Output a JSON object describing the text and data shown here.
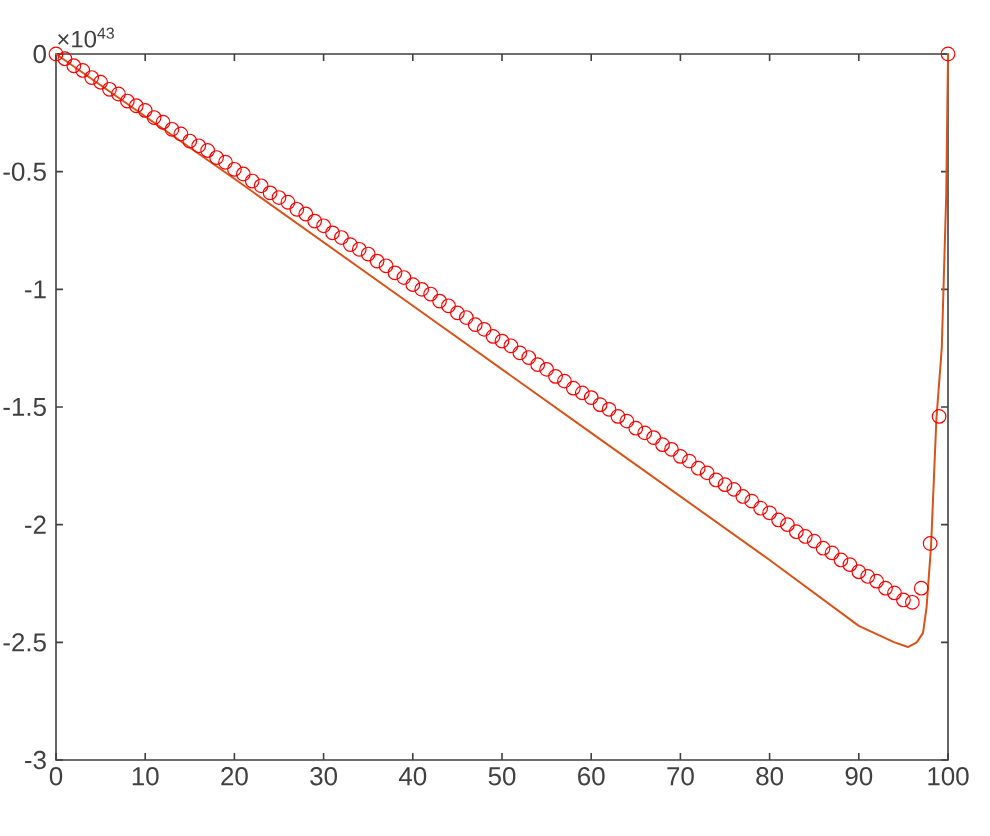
{
  "chart_data": {
    "type": "scatter",
    "xlim": [
      0,
      100
    ],
    "ylim": [
      -3,
      0
    ],
    "xticks": [
      0,
      10,
      20,
      30,
      40,
      50,
      60,
      70,
      80,
      90,
      100
    ],
    "yticks": [
      -3,
      -2.5,
      -2,
      -1.5,
      -1,
      -0.5,
      0
    ],
    "annotations": [
      "×10$^{43}$"
    ],
    "series": [
      {
        "marker": "circle",
        "color": "#ff0000",
        "x": [
          0,
          1,
          2,
          3,
          4,
          5,
          6,
          7,
          8,
          9,
          10,
          11,
          12,
          13,
          14,
          15,
          16,
          17,
          18,
          19,
          20,
          21,
          22,
          23,
          24,
          25,
          26,
          27,
          28,
          29,
          30,
          31,
          32,
          33,
          34,
          35,
          36,
          37,
          38,
          39,
          40,
          41,
          42,
          43,
          44,
          45,
          46,
          47,
          48,
          49,
          50,
          51,
          52,
          53,
          54,
          55,
          56,
          57,
          58,
          59,
          60,
          61,
          62,
          63,
          64,
          65,
          66,
          67,
          68,
          69,
          70,
          71,
          72,
          73,
          74,
          75,
          76,
          77,
          78,
          79,
          80,
          81,
          82,
          83,
          84,
          85,
          86,
          87,
          88,
          89,
          90,
          91,
          92,
          93,
          94,
          95,
          96,
          97,
          98,
          99,
          100
        ],
        "values": [
          0,
          -0.02,
          -0.05,
          -0.07,
          -0.1,
          -0.12,
          -0.15,
          -0.17,
          -0.2,
          -0.22,
          -0.24,
          -0.27,
          -0.29,
          -0.32,
          -0.34,
          -0.37,
          -0.39,
          -0.41,
          -0.44,
          -0.46,
          -0.49,
          -0.51,
          -0.54,
          -0.56,
          -0.59,
          -0.61,
          -0.63,
          -0.66,
          -0.68,
          -0.71,
          -0.73,
          -0.76,
          -0.78,
          -0.81,
          -0.83,
          -0.85,
          -0.88,
          -0.9,
          -0.93,
          -0.95,
          -0.98,
          -1.0,
          -1.02,
          -1.05,
          -1.07,
          -1.1,
          -1.12,
          -1.15,
          -1.17,
          -1.2,
          -1.22,
          -1.24,
          -1.27,
          -1.29,
          -1.32,
          -1.34,
          -1.37,
          -1.39,
          -1.42,
          -1.44,
          -1.46,
          -1.49,
          -1.51,
          -1.54,
          -1.56,
          -1.59,
          -1.61,
          -1.63,
          -1.66,
          -1.68,
          -1.71,
          -1.73,
          -1.76,
          -1.78,
          -1.81,
          -1.83,
          -1.85,
          -1.88,
          -1.9,
          -1.93,
          -1.95,
          -1.98,
          -2.0,
          -2.03,
          -2.05,
          -2.07,
          -2.1,
          -2.12,
          -2.15,
          -2.17,
          -2.2,
          -2.22,
          -2.24,
          -2.27,
          -2.29,
          -2.32,
          -2.33,
          -2.27,
          -2.08,
          -1.54,
          0
        ]
      },
      {
        "type": "line",
        "marker": "none",
        "color": "#d95319",
        "x": [
          0,
          20,
          40,
          60,
          80,
          90,
          94,
          95.5,
          96.5,
          97.2,
          97.6,
          98.1,
          98.7,
          99.3,
          99.8,
          100
        ],
        "values": [
          0,
          -0.53,
          -1.07,
          -1.61,
          -2.15,
          -2.43,
          -2.5,
          -2.52,
          -2.5,
          -2.46,
          -2.35,
          -2.09,
          -1.55,
          -1.25,
          -0.6,
          0
        ]
      }
    ]
  }
}
